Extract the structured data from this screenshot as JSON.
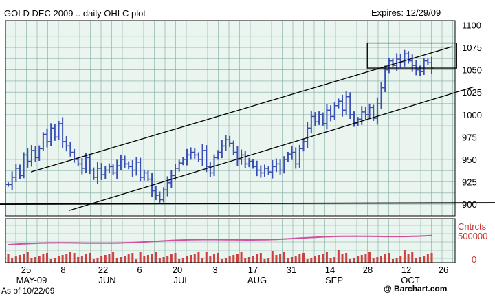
{
  "header": {
    "title": "GOLD DEC 2009 .. daily OHLC plot",
    "expires": "Expires: 12/29/09"
  },
  "footer": {
    "as_of": "As of 10/22/09",
    "brand": "@ Barchart.com"
  },
  "colors": {
    "ohlc": "#3a4fb5",
    "volume": "#d04040",
    "open_interest": "#d050a0",
    "grid": "#7fa9a0",
    "panel_bg": "#e9f5ee",
    "volume_label": "#cc3333"
  },
  "chart_data": {
    "type": "ohlc",
    "title": "GOLD DEC 2009 .. daily OHLC plot",
    "ylim": [
      887,
      1105
    ],
    "y_ticks": [
      900,
      925,
      950,
      975,
      1000,
      1025,
      1050,
      1075,
      1100
    ],
    "x_ticks": [
      {
        "day": "25",
        "month": "MAY-09"
      },
      {
        "day": "8",
        "month": ""
      },
      {
        "day": "22",
        "month": "JUN"
      },
      {
        "day": "6",
        "month": ""
      },
      {
        "day": "20",
        "month": "JUL"
      },
      {
        "day": "3",
        "month": ""
      },
      {
        "day": "17",
        "month": "AUG"
      },
      {
        "day": "31",
        "month": ""
      },
      {
        "day": "14",
        "month": "SEP"
      },
      {
        "day": "28",
        "month": ""
      },
      {
        "day": "12",
        "month": "OCT"
      },
      {
        "day": "26",
        "month": ""
      }
    ],
    "price_closes": [
      922,
      930,
      940,
      932,
      955,
      948,
      960,
      952,
      962,
      978,
      970,
      985,
      975,
      990,
      970,
      965,
      958,
      950,
      945,
      940,
      952,
      938,
      930,
      940,
      933,
      938,
      942,
      935,
      943,
      950,
      945,
      942,
      938,
      947,
      930,
      935,
      928,
      915,
      910,
      905,
      916,
      924,
      932,
      940,
      946,
      950,
      955,
      958,
      955,
      950,
      960,
      942,
      935,
      952,
      958,
      965,
      972,
      968,
      958,
      950,
      955,
      945,
      948,
      942,
      938,
      935,
      940,
      936,
      942,
      945,
      938,
      950,
      956,
      958,
      945,
      962,
      970,
      985,
      998,
      992,
      1000,
      990,
      1005,
      998,
      1010,
      1015,
      1005,
      1020,
      1000,
      990,
      995,
      1003,
      1000,
      1008,
      996,
      1012,
      1030,
      1050,
      1060,
      1055,
      1062,
      1058,
      1068,
      1060,
      1055,
      1050,
      1048,
      1060,
      1058,
      1052
    ],
    "channel_upper_line": [
      [
        952,
        936
      ],
      [
        1150,
        1076
      ]
    ],
    "channel_lower_line": [
      [
        970,
        893
      ],
      [
        1160,
        1031
      ]
    ],
    "support_line": 900,
    "highlight_box": {
      "x_range": [
        1110,
        1152
      ],
      "y_range": [
        1052,
        1080
      ]
    },
    "volume": {
      "label": "Cntrcts",
      "tick_labels": [
        "500000",
        "0"
      ],
      "open_interest_level": 500000
    }
  }
}
